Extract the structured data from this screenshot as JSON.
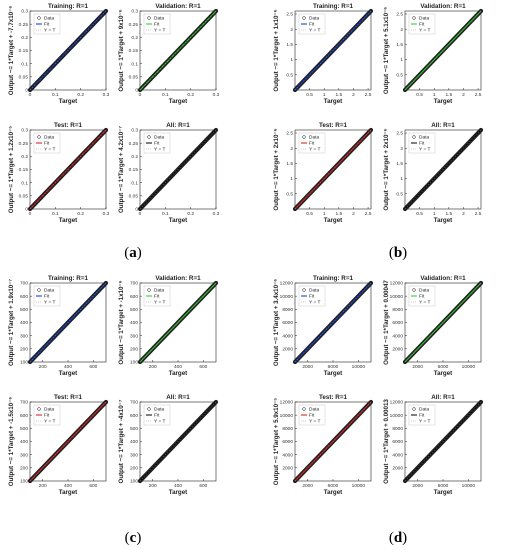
{
  "colors": {
    "data": "#222222",
    "unity": "#999999"
  },
  "figures": [
    {
      "caption_letter": "a",
      "axis": {
        "min": 0,
        "max": 0.3,
        "xticks": [
          0,
          0.1,
          0.2,
          0.3
        ],
        "yticks": [
          0,
          0.05,
          0.1,
          0.15,
          0.2,
          0.25,
          0.3
        ]
      },
      "panels": [
        {
          "title": "Training: R=1",
          "ylabel": "Output ~= 1*Target + -7.7x10⁻⁶",
          "xlabel": "Target",
          "fit_color": "#0033cc",
          "points": [
            0.01,
            0.03,
            0.05,
            0.07,
            0.09,
            0.11,
            0.13,
            0.15,
            0.17,
            0.19,
            0.21,
            0.23,
            0.25,
            0.27,
            0.29
          ]
        },
        {
          "title": "Validation: R=1",
          "ylabel": "Output ~= 1*Target + 9x10⁻⁶",
          "xlabel": "Target",
          "fit_color": "#22cc22",
          "points": [
            0.02,
            0.04,
            0.06,
            0.08,
            0.1,
            0.12,
            0.14,
            0.16,
            0.18,
            0.2,
            0.22,
            0.24,
            0.26,
            0.28
          ]
        },
        {
          "title": "Test: R=1",
          "ylabel": "Output ~= 1*Target + 1.2x10⁻⁵",
          "xlabel": "Target",
          "fit_color": "#dd1111",
          "points": [
            0.02,
            0.04,
            0.06,
            0.08,
            0.1,
            0.12,
            0.14,
            0.16,
            0.18,
            0.2,
            0.22,
            0.24,
            0.26,
            0.28
          ]
        },
        {
          "title": "All: R=1",
          "ylabel": "Output ~= 1*Target + 4.2x10⁻⁷",
          "xlabel": "Target",
          "fit_color": "#000000",
          "points": []
        }
      ]
    },
    {
      "caption_letter": "b",
      "axis": {
        "min": 0,
        "max": 2.6,
        "xticks": [
          0.5,
          1,
          1.5,
          2,
          2.5
        ],
        "yticks": [
          0.5,
          1,
          1.5,
          2,
          2.5
        ]
      },
      "panels": [
        {
          "title": "Training: R=1",
          "ylabel": "Output ~= 1*Target + 1x10⁻⁶",
          "xlabel": "Target",
          "fit_color": "#0033cc",
          "points": []
        },
        {
          "title": "Validation: R=1",
          "ylabel": "Output ~= 1*Target + 5.1x10⁻⁶",
          "xlabel": "Target",
          "fit_color": "#22cc22",
          "points": []
        },
        {
          "title": "Test: R=1",
          "ylabel": "Output ~= 1*Target + 2x10⁻⁶",
          "xlabel": "Target",
          "fit_color": "#dd1111",
          "points": []
        },
        {
          "title": "All: R=1",
          "ylabel": "Output ~= 1*Target + 2x10⁻⁶",
          "xlabel": "Target",
          "fit_color": "#000000",
          "points": []
        }
      ]
    },
    {
      "caption_letter": "c",
      "axis": {
        "min": 100,
        "max": 700,
        "xticks": [
          200,
          400,
          600
        ],
        "yticks": [
          100,
          200,
          300,
          400,
          500,
          600,
          700
        ]
      },
      "panels": [
        {
          "title": "Training: R=1",
          "ylabel": "Output ~= 1*Target + 1.9x10⁻⁷",
          "xlabel": "Target",
          "fit_color": "#0033cc",
          "points": []
        },
        {
          "title": "Validation: R=1",
          "ylabel": "Output ~= 1*Target + -1x10⁻⁶",
          "xlabel": "Target",
          "fit_color": "#22cc22",
          "points": []
        },
        {
          "title": "Test: R=1",
          "ylabel": "Output ~= 1*Target + -1.5x10⁻⁶",
          "xlabel": "Target",
          "fit_color": "#dd1111",
          "points": []
        },
        {
          "title": "All: R=1",
          "ylabel": "Output ~= 1*Target + -4x10⁻⁷",
          "xlabel": "Target",
          "fit_color": "#000000",
          "points": []
        }
      ]
    },
    {
      "caption_letter": "d",
      "axis": {
        "min": 0,
        "max": 12000,
        "xticks": [
          2000,
          6000,
          10000
        ],
        "yticks": [
          2000,
          4000,
          6000,
          8000,
          10000,
          12000
        ]
      },
      "panels": [
        {
          "title": "Training: R=1",
          "ylabel": "Output ~= 1*Target + 3.4x10⁻⁶",
          "xlabel": "Target",
          "fit_color": "#0033cc",
          "points": []
        },
        {
          "title": "Validation: R=1",
          "ylabel": "Output ~= 1*Target + 0.00047",
          "xlabel": "Target",
          "fit_color": "#22cc22",
          "points": []
        },
        {
          "title": "Test: R=1",
          "ylabel": "Output ~= 1*Target + 5.9x10⁻⁵",
          "xlabel": "Target",
          "fit_color": "#dd1111",
          "points": []
        },
        {
          "title": "All: R=1",
          "ylabel": "Output ~= 1*Target + 0.00013",
          "xlabel": "Target",
          "fit_color": "#000000",
          "points": []
        }
      ]
    }
  ],
  "legend": {
    "data_label": "Data",
    "fit_label": "Fit",
    "unity_label": "Y = T"
  },
  "chart_data": [
    {
      "type": "scatter",
      "title": "Training: R=1",
      "xlabel": "Target",
      "ylabel": "Output ~= 1*Target + -7.7x10⁻⁶",
      "xlim": [
        0,
        0.3
      ],
      "ylim": [
        0,
        0.3
      ],
      "series": [
        {
          "name": "Data",
          "values": "y = x"
        },
        {
          "name": "Fit",
          "values": "y = x"
        },
        {
          "name": "Y = T",
          "values": "y = x"
        }
      ]
    },
    {
      "type": "scatter",
      "title": "Validation: R=1",
      "xlabel": "Target",
      "ylabel": "Output ~= 1*Target + 9x10⁻⁶",
      "xlim": [
        0,
        0.3
      ],
      "ylim": [
        0,
        0.3
      ]
    },
    {
      "type": "scatter",
      "title": "Test: R=1",
      "xlabel": "Target",
      "ylabel": "Output ~= 1*Target + 1.2x10⁻⁵",
      "xlim": [
        0,
        0.3
      ],
      "ylim": [
        0,
        0.3
      ]
    },
    {
      "type": "scatter",
      "title": "All: R=1",
      "xlabel": "Target",
      "ylabel": "Output ~= 1*Target + 4.2x10⁻⁷",
      "xlim": [
        0,
        0.3
      ],
      "ylim": [
        0,
        0.3
      ]
    },
    {
      "type": "scatter",
      "title": "Training: R=1",
      "xlabel": "Target",
      "ylabel": "Output ~= 1*Target + 1x10⁻⁶",
      "xlim": [
        0,
        2.6
      ],
      "ylim": [
        0,
        2.6
      ]
    },
    {
      "type": "scatter",
      "title": "Validation: R=1",
      "xlabel": "Target",
      "ylabel": "Output ~= 1*Target + 5.1x10⁻⁶",
      "xlim": [
        0,
        2.6
      ],
      "ylim": [
        0,
        2.6
      ]
    },
    {
      "type": "scatter",
      "title": "Test: R=1",
      "xlabel": "Target",
      "ylabel": "Output ~= 1*Target + 2x10⁻⁶",
      "xlim": [
        0,
        2.6
      ],
      "ylim": [
        0,
        2.6
      ]
    },
    {
      "type": "scatter",
      "title": "All: R=1",
      "xlabel": "Target",
      "ylabel": "Output ~= 1*Target + 2x10⁻⁶",
      "xlim": [
        0,
        2.6
      ],
      "ylim": [
        0,
        2.6
      ]
    },
    {
      "type": "scatter",
      "title": "Training: R=1",
      "xlabel": "Target",
      "ylabel": "Output ~= 1*Target + 1.9x10⁻⁷",
      "xlim": [
        100,
        700
      ],
      "ylim": [
        100,
        700
      ]
    },
    {
      "type": "scatter",
      "title": "Validation: R=1",
      "xlabel": "Target",
      "ylabel": "Output ~= 1*Target + -1x10⁻⁶",
      "xlim": [
        100,
        700
      ],
      "ylim": [
        100,
        700
      ]
    },
    {
      "type": "scatter",
      "title": "Test: R=1",
      "xlabel": "Target",
      "ylabel": "Output ~= 1*Target + -1.5x10⁻⁶",
      "xlim": [
        100,
        700
      ],
      "ylim": [
        100,
        700
      ]
    },
    {
      "type": "scatter",
      "title": "All: R=1",
      "xlabel": "Target",
      "ylabel": "Output ~= 1*Target + -4x10⁻⁷",
      "xlim": [
        100,
        700
      ],
      "ylim": [
        100,
        700
      ]
    },
    {
      "type": "scatter",
      "title": "Training: R=1",
      "xlabel": "Target",
      "ylabel": "Output ~= 1*Target + 3.4x10⁻⁶",
      "xlim": [
        0,
        12000
      ],
      "ylim": [
        0,
        12000
      ]
    },
    {
      "type": "scatter",
      "title": "Validation: R=1",
      "xlabel": "Target",
      "ylabel": "Output ~= 1*Target + 0.00047",
      "xlim": [
        0,
        12000
      ],
      "ylim": [
        0,
        12000
      ]
    },
    {
      "type": "scatter",
      "title": "Test: R=1",
      "xlabel": "Target",
      "ylabel": "Output ~= 1*Target + 5.9x10⁻⁵",
      "xlim": [
        0,
        12000
      ],
      "ylim": [
        0,
        12000
      ]
    },
    {
      "type": "scatter",
      "title": "All: R=1",
      "xlabel": "Target",
      "ylabel": "Output ~= 1*Target + 0.00013",
      "xlim": [
        0,
        12000
      ],
      "ylim": [
        0,
        12000
      ]
    }
  ]
}
